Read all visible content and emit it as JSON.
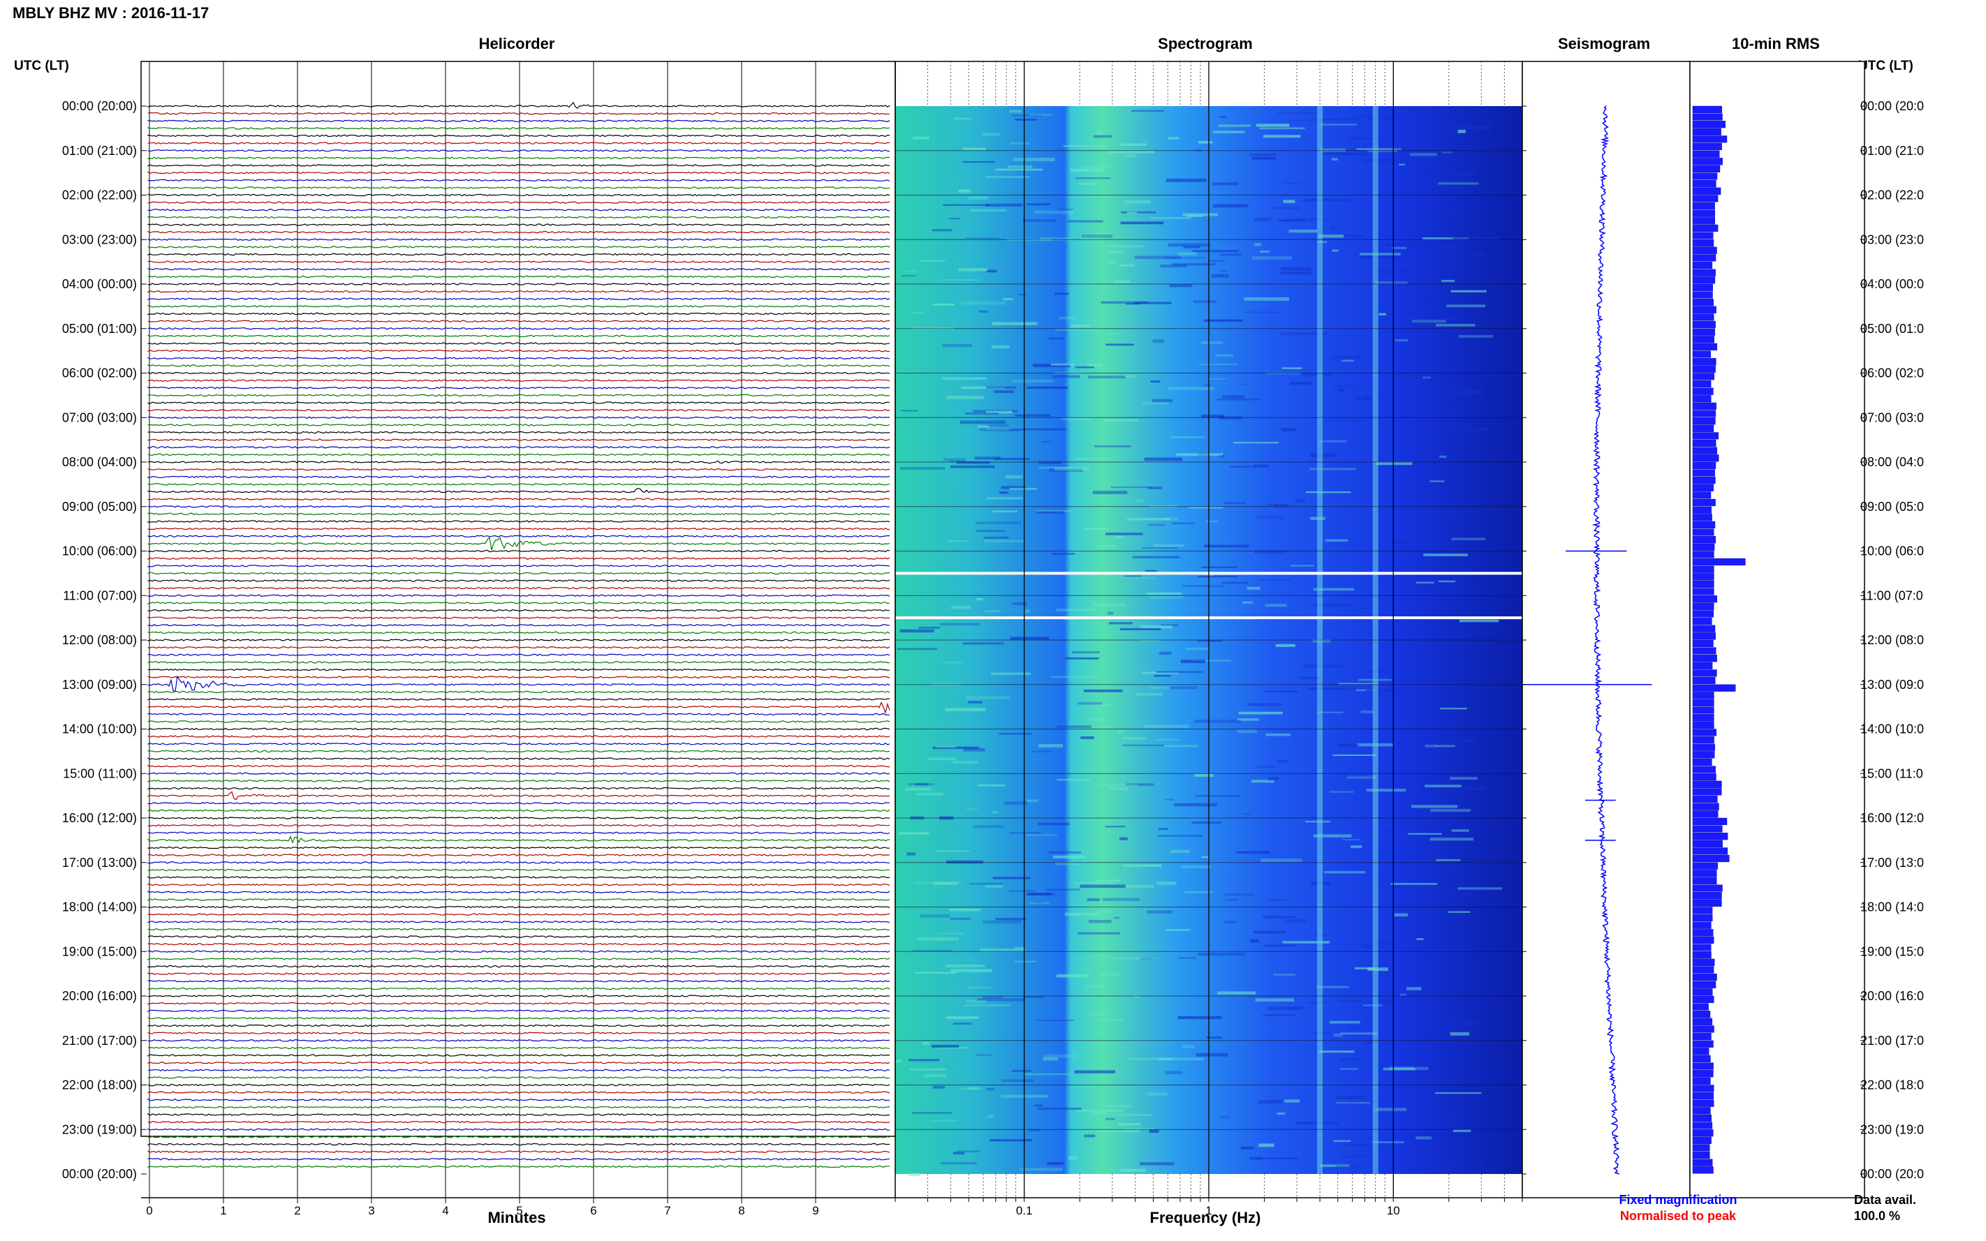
{
  "title": "MBLY BHZ MV : 2016-11-17",
  "left_axis_header": "UTC (LT)",
  "right_axis_header": "UTC (LT)",
  "panel_titles": {
    "helicorder": "Helicorder",
    "spectrogram": "Spectrogram",
    "seismogram": "Seismogram",
    "rms": "10-min RMS"
  },
  "time_labels": [
    "00:00 (20:00)",
    "01:00 (21:00)",
    "02:00 (22:00)",
    "03:00 (23:00)",
    "04:00 (00:00)",
    "05:00 (01:00)",
    "06:00 (02:00)",
    "07:00 (03:00)",
    "08:00 (04:00)",
    "09:00 (05:00)",
    "10:00 (06:00)",
    "11:00 (07:00)",
    "12:00 (08:00)",
    "13:00 (09:00)",
    "14:00 (10:00)",
    "15:00 (11:00)",
    "16:00 (12:00)",
    "17:00 (13:00)",
    "18:00 (14:00)",
    "19:00 (15:00)",
    "20:00 (16:00)",
    "21:00 (17:00)",
    "22:00 (18:00)",
    "23:00 (19:00)",
    "00:00 (20:00)"
  ],
  "right_time_labels": [
    "00:00 (20:0",
    "01:00 (21:0",
    "02:00 (22:0",
    "03:00 (23:0",
    "04:00 (00:0",
    "05:00 (01:0",
    "06:00 (02:0",
    "07:00 (03:0",
    "08:00 (04:0",
    "09:00 (05:0",
    "10:00 (06:0",
    "11:00 (07:0",
    "12:00 (08:0",
    "13:00 (09:0",
    "14:00 (10:0",
    "15:00 (11:0",
    "16:00 (12:0",
    "17:00 (13:0",
    "18:00 (14:0",
    "19:00 (15:0",
    "20:00 (16:0",
    "21:00 (17:0",
    "22:00 (18:0",
    "23:00 (19:0",
    "00:00 (20:0"
  ],
  "helicorder": {
    "xlabel": "Minutes",
    "x_ticks": [
      "0",
      "1",
      "2",
      "3",
      "4",
      "5",
      "6",
      "7",
      "8",
      "9"
    ],
    "trace_colors": [
      "#000000",
      "#b00000",
      "#0000c0",
      "#007a00"
    ]
  },
  "spectrogram": {
    "xlabel": "Frequency (Hz)",
    "x_ticks": [
      "0.1",
      "1",
      "10"
    ]
  },
  "legend": {
    "fixed": "Fixed magnification",
    "normalised": "Normalised to peak",
    "fixed_color": "#0000ff",
    "normalised_color": "#ff0000"
  },
  "data_avail": {
    "label": "Data avail.",
    "value": "100.0 %"
  },
  "chart_data": [
    {
      "type": "line",
      "panel": "helicorder",
      "xlabel": "Minutes",
      "xlim": [
        0,
        10
      ],
      "rows": 144,
      "row_minutes": 10,
      "events": [
        {
          "hour": 0,
          "minute": 5.7,
          "amplitude": 0.4
        },
        {
          "hour": 8,
          "minute": 7.6,
          "amplitude": 0.3
        },
        {
          "hour": 8.67,
          "minute": 6.6,
          "amplitude": 0.4
        },
        {
          "hour": 9.83,
          "minute": 4.6,
          "amplitude": 1.0
        },
        {
          "hour": 13,
          "minute": 0.3,
          "amplitude": 1.2
        },
        {
          "hour": 13.5,
          "minute": 9.9,
          "amplitude": 0.8
        },
        {
          "hour": 15.5,
          "minute": 1.1,
          "amplitude": 0.6
        },
        {
          "hour": 16.5,
          "minute": 1.9,
          "amplitude": 0.5
        }
      ]
    },
    {
      "type": "heatmap",
      "panel": "spectrogram",
      "xlabel": "Frequency (Hz)",
      "x_scale": "log",
      "xlim": [
        0.02,
        50
      ],
      "gaps_hours": [
        10.5,
        11.5
      ],
      "bands_hz": [
        4,
        8
      ]
    },
    {
      "type": "line",
      "panel": "seismogram",
      "spikes_hours": [
        10,
        13,
        15.6,
        16.5
      ]
    },
    {
      "type": "bar",
      "panel": "rms",
      "ylabel": "10-min RMS",
      "values_hourly": [
        1.2,
        1.0,
        0.9,
        0.8,
        0.8,
        0.8,
        0.8,
        0.9,
        0.8,
        0.8,
        2.2,
        0.8,
        0.8,
        1.6,
        0.8,
        1.0,
        1.2,
        1.0,
        0.8,
        0.8,
        0.7,
        0.7,
        0.7,
        0.7
      ]
    }
  ]
}
